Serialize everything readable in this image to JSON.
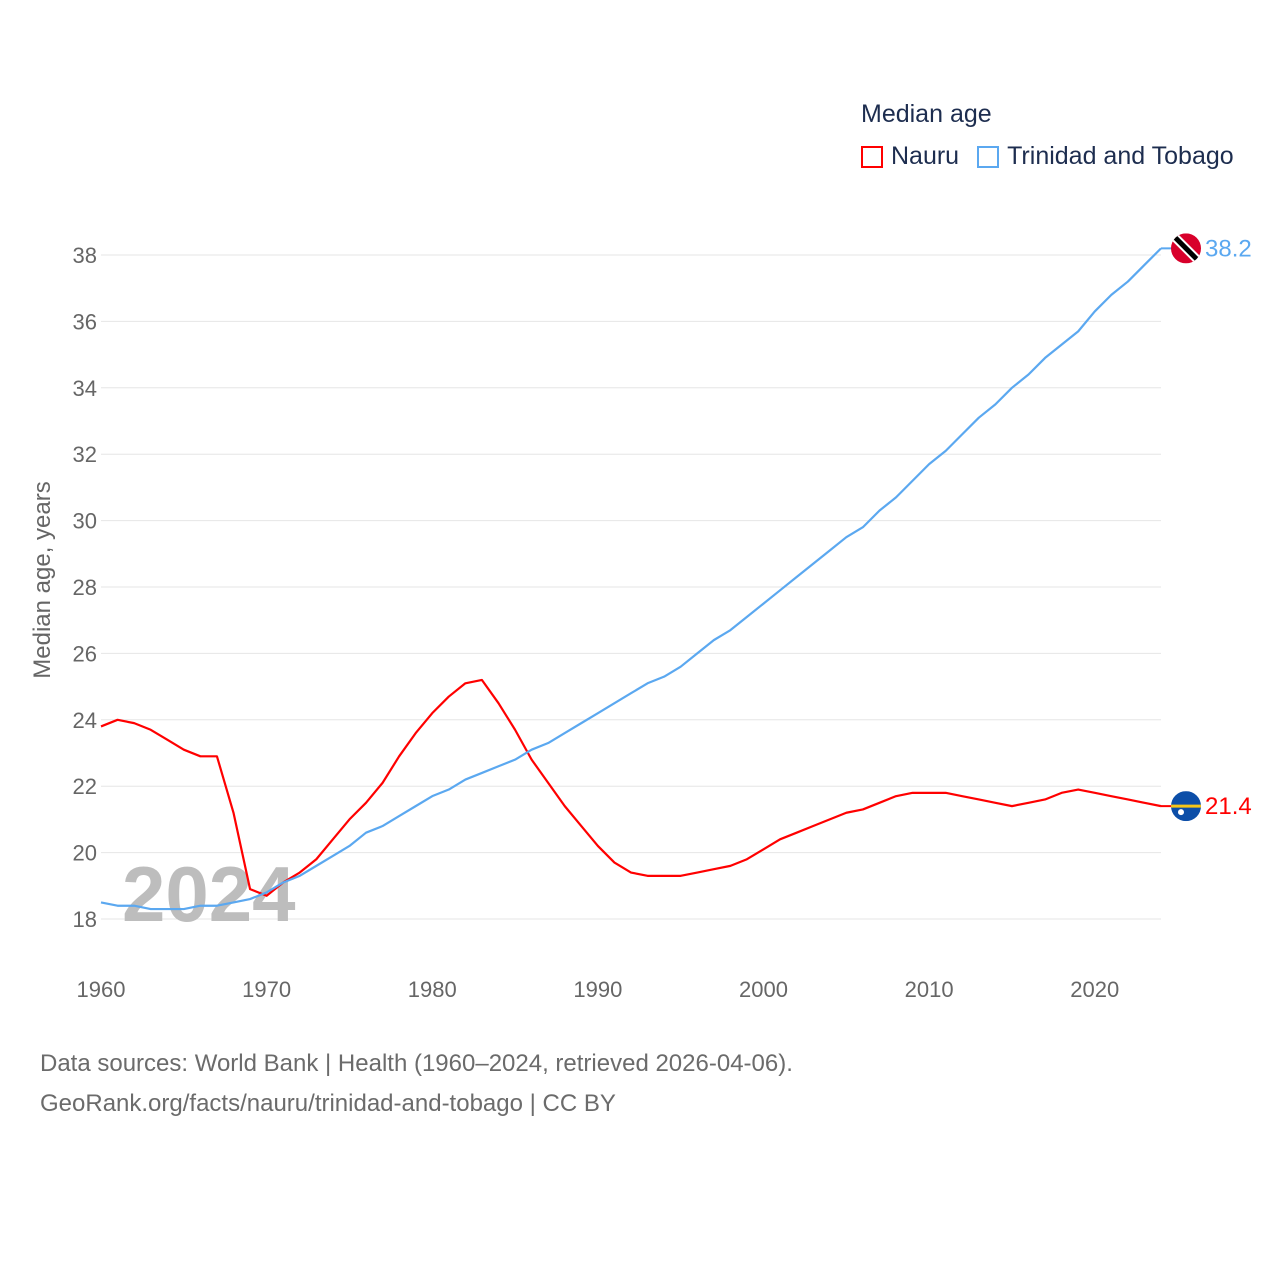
{
  "chart_data": {
    "type": "line",
    "title": "Median age",
    "ylabel": "Median age, years",
    "xlabel": "",
    "xlim": [
      1960,
      2024
    ],
    "ylim": [
      17,
      39
    ],
    "yticks": [
      18,
      20,
      22,
      24,
      26,
      28,
      30,
      32,
      34,
      36,
      38
    ],
    "xticks": [
      1960,
      1970,
      1980,
      1990,
      2000,
      2010,
      2020
    ],
    "grid": true,
    "legend_placement": "top-right",
    "year_watermark": "2024",
    "x": [
      1960,
      1961,
      1962,
      1963,
      1964,
      1965,
      1966,
      1967,
      1968,
      1969,
      1970,
      1971,
      1972,
      1973,
      1974,
      1975,
      1976,
      1977,
      1978,
      1979,
      1980,
      1981,
      1982,
      1983,
      1984,
      1985,
      1986,
      1987,
      1988,
      1989,
      1990,
      1991,
      1992,
      1993,
      1994,
      1995,
      1996,
      1997,
      1998,
      1999,
      2000,
      2001,
      2002,
      2003,
      2004,
      2005,
      2006,
      2007,
      2008,
      2009,
      2010,
      2011,
      2012,
      2013,
      2014,
      2015,
      2016,
      2017,
      2018,
      2019,
      2020,
      2021,
      2022,
      2023,
      2024
    ],
    "series": [
      {
        "name": "Nauru",
        "color": "#ff0000",
        "end_label": "21.4",
        "flag": "nauru-flag",
        "values": [
          23.8,
          24.0,
          23.9,
          23.7,
          23.4,
          23.1,
          22.9,
          22.9,
          21.2,
          18.9,
          18.7,
          19.1,
          19.4,
          19.8,
          20.4,
          21.0,
          21.5,
          22.1,
          22.9,
          23.6,
          24.2,
          24.7,
          25.1,
          25.2,
          24.5,
          23.7,
          22.8,
          22.1,
          21.4,
          20.8,
          20.2,
          19.7,
          19.4,
          19.3,
          19.3,
          19.3,
          19.4,
          19.5,
          19.6,
          19.8,
          20.1,
          20.4,
          20.6,
          20.8,
          21.0,
          21.2,
          21.3,
          21.5,
          21.7,
          21.8,
          21.8,
          21.8,
          21.7,
          21.6,
          21.5,
          21.4,
          21.5,
          21.6,
          21.8,
          21.9,
          21.8,
          21.7,
          21.6,
          21.5,
          21.4
        ]
      },
      {
        "name": "Trinidad and Tobago",
        "color": "#5ba8f0",
        "end_label": "38.2",
        "flag": "trinidad-flag",
        "values": [
          18.5,
          18.4,
          18.4,
          18.3,
          18.3,
          18.3,
          18.4,
          18.4,
          18.5,
          18.6,
          18.8,
          19.1,
          19.3,
          19.6,
          19.9,
          20.2,
          20.6,
          20.8,
          21.1,
          21.4,
          21.7,
          21.9,
          22.2,
          22.4,
          22.6,
          22.8,
          23.1,
          23.3,
          23.6,
          23.9,
          24.2,
          24.5,
          24.8,
          25.1,
          25.3,
          25.6,
          26.0,
          26.4,
          26.7,
          27.1,
          27.5,
          27.9,
          28.3,
          28.7,
          29.1,
          29.5,
          29.8,
          30.3,
          30.7,
          31.2,
          31.7,
          32.1,
          32.6,
          33.1,
          33.5,
          34.0,
          34.4,
          34.9,
          35.3,
          35.7,
          36.3,
          36.8,
          37.2,
          37.7,
          38.2
        ]
      }
    ]
  },
  "source": {
    "line1": "Data sources: World Bank | Health (1960–2024, retrieved 2026-04-06).",
    "line2": "GeoRank.org/facts/nauru/trinidad-and-tobago | CC BY"
  }
}
